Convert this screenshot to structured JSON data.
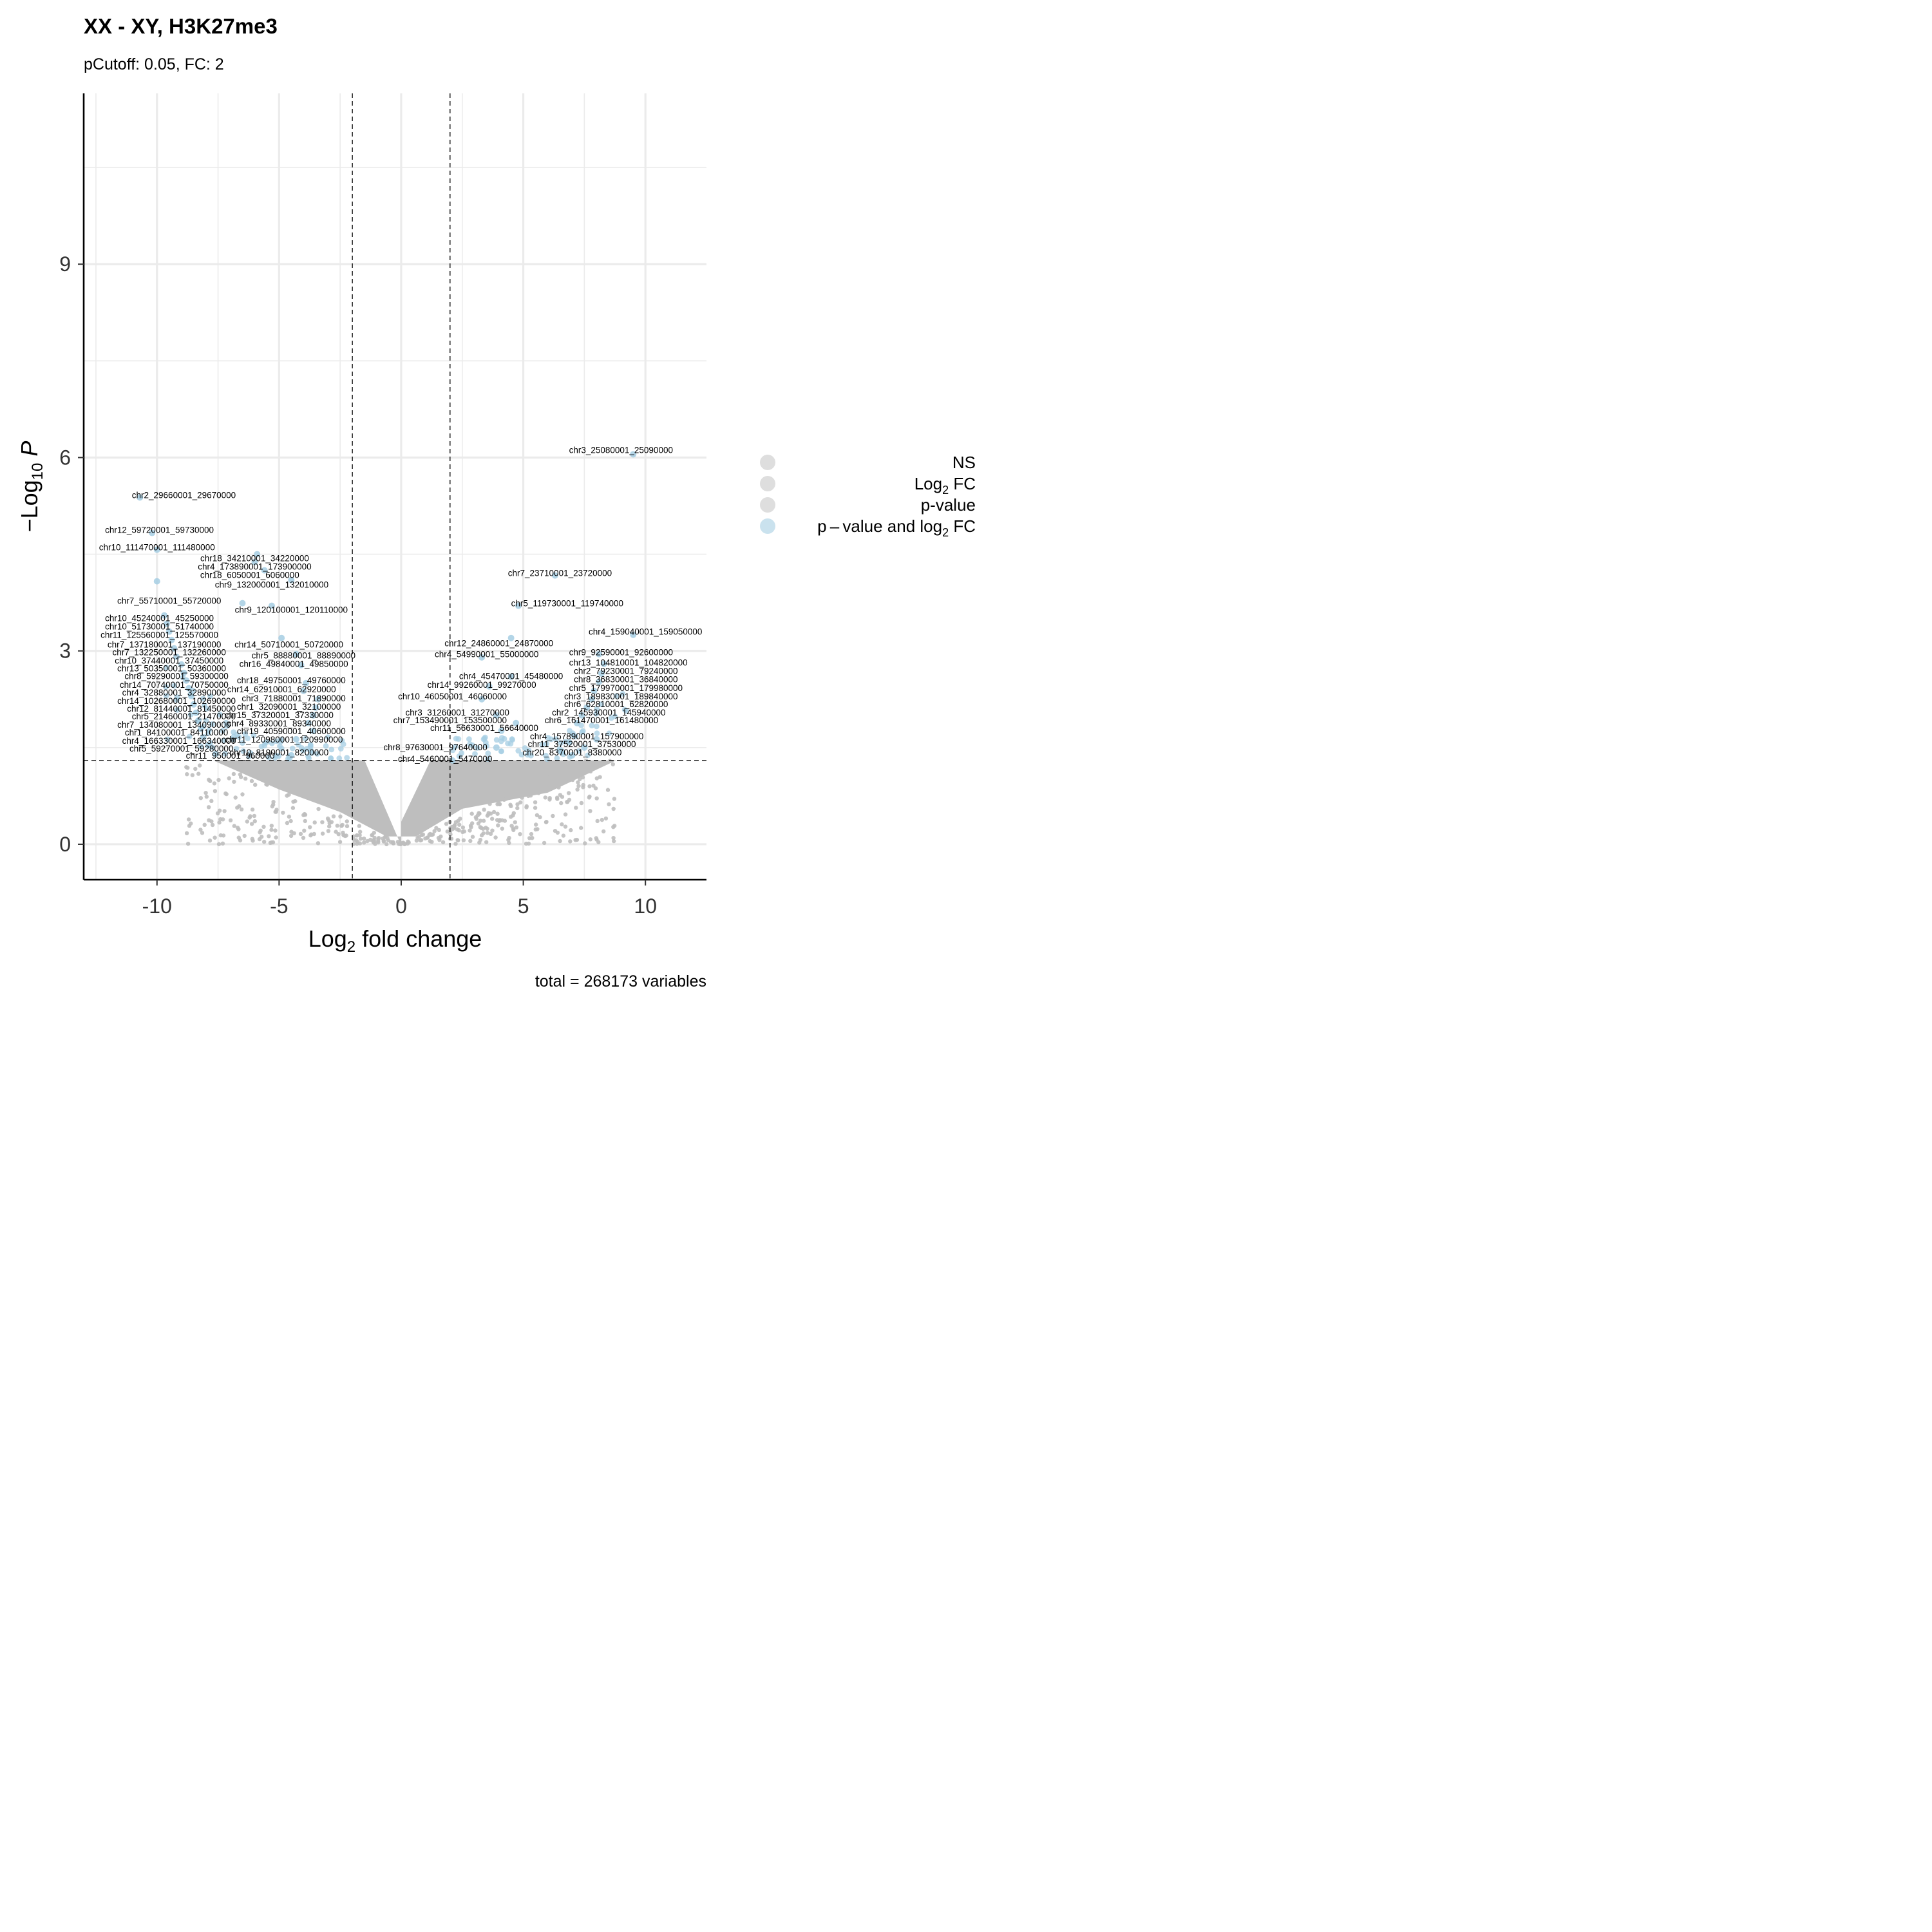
{
  "title": "XX - XY, H3K27me3",
  "subtitle": "pCutoff: 0.05, FC: 2",
  "caption": "total = 268173 variables",
  "colors": {
    "ns": "#bebebe",
    "sig": "#a6cee3",
    "grid": "#ebebeb"
  },
  "chart_data": {
    "type": "scatter",
    "title": "XX - XY, H3K27me3",
    "subtitle": "pCutoff: 0.05, FC: 2",
    "xlabel": "Log2 fold change",
    "ylabel": "-Log10 P",
    "xlim": [
      -13,
      12.5
    ],
    "ylim": [
      -0.55,
      11.65
    ],
    "xticks": [
      -10,
      -5,
      0,
      5,
      10
    ],
    "xtick_labels": [
      "-10",
      "-5",
      "0",
      "5",
      "10"
    ],
    "yticks": [
      0,
      3,
      6,
      9
    ],
    "ytick_labels": [
      "0",
      "3",
      "6",
      "9"
    ],
    "grid": true,
    "cutoff_lines": {
      "log2fc": [
        -2,
        2
      ],
      "neglog10p": 1.301
    },
    "legend": {
      "position": "right",
      "entries": [
        {
          "name": "NS",
          "color": "#bebebe"
        },
        {
          "name": "Log2 FC",
          "color": "#bebebe"
        },
        {
          "name": "p-value",
          "color": "#bebebe"
        },
        {
          "name": "p–value and log2 FC",
          "color": "#a6cee3"
        }
      ]
    },
    "labeled_points": [
      {
        "label": "chr3_25080001_25090000",
        "x": 9.5,
        "y": 6.05
      },
      {
        "label": "chr2_29660001_29670000",
        "x": -10.7,
        "y": 5.38
      },
      {
        "label": "chr12_59720001_59730000",
        "x": -10.2,
        "y": 4.83
      },
      {
        "label": "chr10_111470001_111480000",
        "x": -10.0,
        "y": 4.57
      },
      {
        "label": "chr18_34210001_34220000",
        "x": -5.9,
        "y": 4.5
      },
      {
        "label": "chr4_173890001_173900000",
        "x": -6.0,
        "y": 4.38
      },
      {
        "label": "chr18_6050001_6060000",
        "x": -5.6,
        "y": 4.25
      },
      {
        "label": "chr7_23710001_23720000",
        "x": 6.3,
        "y": 4.17
      },
      {
        "label": "chr9_132000001_132010000",
        "x": -4.5,
        "y": 4.1
      },
      {
        "label": "chr10_111470001_111480000b",
        "x": -10.0,
        "y": 4.08
      },
      {
        "label": "chr7_55710001_55720000",
        "x": -6.5,
        "y": 3.74
      },
      {
        "label": "chr5_119730001_119740000",
        "x": 4.8,
        "y": 3.7
      },
      {
        "label": "chr9_120100001_120110000",
        "x": -5.3,
        "y": 3.7
      },
      {
        "label": "chr10_45240001_45250000",
        "x": -9.7,
        "y": 3.55
      },
      {
        "label": "chr10_51730001_51740000",
        "x": -9.6,
        "y": 3.42
      },
      {
        "label": "chr11_125560001_125570000",
        "x": -9.5,
        "y": 3.3
      },
      {
        "label": "chr4_159040001_159050000",
        "x": 9.5,
        "y": 3.25
      },
      {
        "label": "chr7_137180001_137190000",
        "x": -9.4,
        "y": 3.17
      },
      {
        "label": "chr14_50710001_50720000",
        "x": -4.9,
        "y": 3.2
      },
      {
        "label": "chr12_24860001_24870000",
        "x": 4.5,
        "y": 3.2
      },
      {
        "label": "chr7_132250001_132260000",
        "x": -9.3,
        "y": 3.04
      },
      {
        "label": "chr9_92590001_92600000",
        "x": 8.1,
        "y": 2.95
      },
      {
        "label": "chr5_88880001_88890000",
        "x": -4.3,
        "y": 2.95
      },
      {
        "label": "chr4_54990001_55000000",
        "x": 3.3,
        "y": 2.9
      },
      {
        "label": "chr10_37440001_37450000",
        "x": -9.2,
        "y": 2.91
      },
      {
        "label": "chr13_104810001_104820000",
        "x": 8.3,
        "y": 2.8
      },
      {
        "label": "chr16_49840001_49850000",
        "x": -4.1,
        "y": 2.78
      },
      {
        "label": "chr13_50350001_50360000",
        "x": -9.0,
        "y": 2.79
      },
      {
        "label": "chr2_79230001_79240000",
        "x": 8.2,
        "y": 2.65
      },
      {
        "label": "chr8_59290001_59300000",
        "x": -8.9,
        "y": 2.66
      },
      {
        "label": "chr4_45470001_45480000",
        "x": 4.5,
        "y": 2.6
      },
      {
        "label": "chr8_36830001_36840000",
        "x": 8.1,
        "y": 2.52
      },
      {
        "label": "chr18_49750001_49760000",
        "x": -3.9,
        "y": 2.5
      },
      {
        "label": "chr14_70740001_70750000",
        "x": -8.8,
        "y": 2.54
      },
      {
        "label": "chr14_99260001_99270000",
        "x": 3.6,
        "y": 2.45
      },
      {
        "label": "chr5_179970001_179980000",
        "x": 7.9,
        "y": 2.38
      },
      {
        "label": "chr14_62910001_62920000",
        "x": -4.0,
        "y": 2.38
      },
      {
        "label": "chr4_32880001_32890000",
        "x": -8.7,
        "y": 2.42
      },
      {
        "label": "chr10_46050001_46060000",
        "x": 3.3,
        "y": 2.25
      },
      {
        "label": "chr3_189830001_189840000",
        "x": 7.8,
        "y": 2.25
      },
      {
        "label": "chr3_71880001_71890000",
        "x": -3.4,
        "y": 2.25
      },
      {
        "label": "chr14_102680001_102690000",
        "x": -8.6,
        "y": 2.3
      },
      {
        "label": "chr6_62810001_62820000",
        "x": 7.6,
        "y": 2.12
      },
      {
        "label": "chr1_32090001_32100000",
        "x": -3.5,
        "y": 2.12
      },
      {
        "label": "chr12_81440001_81450000",
        "x": -8.5,
        "y": 2.17
      },
      {
        "label": "chr3_31260001_31270000",
        "x": 3.9,
        "y": 2.0
      },
      {
        "label": "chr2_145930001_145940000",
        "x": 7.4,
        "y": 2.0
      },
      {
        "label": "chr15_37320001_37330000",
        "x": -3.6,
        "y": 2.0
      },
      {
        "label": "chr5_21460001_21470000",
        "x": -8.4,
        "y": 2.04
      },
      {
        "label": "chr7_153490001_153500000",
        "x": 4.7,
        "y": 1.88
      },
      {
        "label": "chr6_161470001_161480000",
        "x": 7.2,
        "y": 1.88
      },
      {
        "label": "chr4_89330001_89340000",
        "x": -3.8,
        "y": 1.88
      },
      {
        "label": "chr7_134080001_134090000",
        "x": -8.3,
        "y": 1.92
      },
      {
        "label": "chr11_56630001_56640000",
        "x": 4.1,
        "y": 1.76
      },
      {
        "label": "chr19_40590001_40600000",
        "x": -3.6,
        "y": 1.76
      },
      {
        "label": "chr1_84100001_84110000",
        "x": -8.2,
        "y": 1.79
      },
      {
        "label": "chr4_157890001_157900000",
        "x": 8.0,
        "y": 1.63
      },
      {
        "label": "chr11_120980001_120990000",
        "x": -4.3,
        "y": 1.63
      },
      {
        "label": "chr4_166330001_166340000",
        "x": -8.1,
        "y": 1.66
      },
      {
        "label": "chr11_37520001_37530000",
        "x": 7.5,
        "y": 1.5
      },
      {
        "label": "chr8_97630001_97640000",
        "x": 3.9,
        "y": 1.5
      },
      {
        "label": "chr5_59270001_59280000",
        "x": -7.9,
        "y": 1.53
      },
      {
        "label": "chr20_8370001_8380000",
        "x": 7.0,
        "y": 1.38
      },
      {
        "label": "chr10_8190001_8200000",
        "x": -4.5,
        "y": 1.38
      },
      {
        "label": "chr4_5460001_5470000",
        "x": 2.1,
        "y": 1.3
      },
      {
        "label": "chr11_950001_960000",
        "x": -7.6,
        "y": 1.4
      }
    ],
    "label_text": [
      {
        "label": "chr3_25080001_25090000",
        "x": 9.0,
        "y": 6.07
      },
      {
        "label": "chr2_29660001_29670000",
        "x": -8.9,
        "y": 5.37
      },
      {
        "label": "chr12_59720001_59730000",
        "x": -9.9,
        "y": 4.83
      },
      {
        "label": "chr10_111470001_111480000",
        "x": -10.0,
        "y": 4.56
      },
      {
        "label": "chr18_34210001_34220000",
        "x": -6.0,
        "y": 4.39
      },
      {
        "label": "chr4_173890001_173900000",
        "x": -6.0,
        "y": 4.26
      },
      {
        "label": "chr18_6050001_6060000",
        "x": -6.2,
        "y": 4.13
      },
      {
        "label": "chr7_23710001_23720000",
        "x": 6.5,
        "y": 4.16
      },
      {
        "label": "chr9_132000001_132010000",
        "x": -5.3,
        "y": 3.98
      },
      {
        "label": "chr7_55710001_55720000",
        "x": -9.5,
        "y": 3.73
      },
      {
        "label": "chr5_119730001_119740000",
        "x": 6.8,
        "y": 3.69
      },
      {
        "label": "chr9_120100001_120110000",
        "x": -4.5,
        "y": 3.59
      },
      {
        "label": "chr10_45240001_45250000",
        "x": -9.9,
        "y": 3.46
      },
      {
        "label": "chr10_51730001_51740000",
        "x": -9.9,
        "y": 3.33
      },
      {
        "label": "chr11_125560001_125570000",
        "x": -9.9,
        "y": 3.2
      },
      {
        "label": "chr4_159040001_159050000",
        "x": 10.0,
        "y": 3.25
      },
      {
        "label": "chr7_137180001_137190000",
        "x": -9.7,
        "y": 3.05
      },
      {
        "label": "chr14_50710001_50720000",
        "x": -4.6,
        "y": 3.05
      },
      {
        "label": "chr12_24860001_24870000",
        "x": 4.0,
        "y": 3.07
      },
      {
        "label": "chr7_132250001_132260000",
        "x": -9.5,
        "y": 2.93
      },
      {
        "label": "chr9_92590001_92600000",
        "x": 9.0,
        "y": 2.93
      },
      {
        "label": "chr5_88880001_88890000",
        "x": -4.0,
        "y": 2.88
      },
      {
        "label": "chr4_54990001_55000000",
        "x": 3.5,
        "y": 2.9
      },
      {
        "label": "chr10_37440001_37450000",
        "x": -9.5,
        "y": 2.8
      },
      {
        "label": "chr13_104810001_104820000",
        "x": 9.3,
        "y": 2.77
      },
      {
        "label": "chr16_49840001_49850000",
        "x": -4.4,
        "y": 2.75
      },
      {
        "label": "chr13_50350001_50360000",
        "x": -9.4,
        "y": 2.68
      },
      {
        "label": "chr2_79230001_79240000",
        "x": 9.2,
        "y": 2.64
      },
      {
        "label": "chr8_59290001_59300000",
        "x": -9.2,
        "y": 2.56
      },
      {
        "label": "chr4_45470001_45480000",
        "x": 4.5,
        "y": 2.56
      },
      {
        "label": "chr8_36830001_36840000",
        "x": 9.2,
        "y": 2.51
      },
      {
        "label": "chr18_49750001_49760000",
        "x": -4.5,
        "y": 2.5
      },
      {
        "label": "chr14_70740001_70750000",
        "x": -9.3,
        "y": 2.43
      },
      {
        "label": "chr14_99260001_99270000",
        "x": 3.3,
        "y": 2.43
      },
      {
        "label": "chr5_179970001_179980000",
        "x": 9.2,
        "y": 2.38
      },
      {
        "label": "chr14_62910001_62920000",
        "x": -4.9,
        "y": 2.36
      },
      {
        "label": "chr4_32880001_32890000",
        "x": -9.3,
        "y": 2.31
      },
      {
        "label": "chr10_46050001_46060000",
        "x": 2.1,
        "y": 2.25
      },
      {
        "label": "chr3_189830001_189840000",
        "x": 9.0,
        "y": 2.25
      },
      {
        "label": "chr3_71880001_71890000",
        "x": -4.4,
        "y": 2.22
      },
      {
        "label": "chr14_102680001_102690000",
        "x": -9.2,
        "y": 2.18
      },
      {
        "label": "chr6_62810001_62820000",
        "x": 8.8,
        "y": 2.13
      },
      {
        "label": "chr1_32090001_32100000",
        "x": -4.6,
        "y": 2.09
      },
      {
        "label": "chr12_81440001_81450000",
        "x": -9.0,
        "y": 2.06
      },
      {
        "label": "chr3_31260001_31270000",
        "x": 2.3,
        "y": 2.0
      },
      {
        "label": "chr2_145930001_145940000",
        "x": 8.5,
        "y": 2.0
      },
      {
        "label": "chr15_37320001_37330000",
        "x": -5.0,
        "y": 1.96
      },
      {
        "label": "chr5_21460001_21470000",
        "x": -8.9,
        "y": 1.94
      },
      {
        "label": "chr7_153490001_153500000",
        "x": 2.0,
        "y": 1.88
      },
      {
        "label": "chr6_161470001_161480000",
        "x": 8.2,
        "y": 1.88
      },
      {
        "label": "chr4_89330001_89340000",
        "x": -5.0,
        "y": 1.83
      },
      {
        "label": "chr7_134080001_134090000",
        "x": -9.3,
        "y": 1.81
      },
      {
        "label": "chr11_56630001_56640000",
        "x": 3.4,
        "y": 1.76
      },
      {
        "label": "chr19_40590001_40600000",
        "x": -4.5,
        "y": 1.71
      },
      {
        "label": "chr1_84100001_84110000",
        "x": -9.2,
        "y": 1.69
      },
      {
        "label": "chr4_157890001_157900000",
        "x": 7.6,
        "y": 1.63
      },
      {
        "label": "chr11_120980001_120990000",
        "x": -4.8,
        "y": 1.58
      },
      {
        "label": "chr4_166330001_166340000",
        "x": -9.1,
        "y": 1.56
      },
      {
        "label": "chr11_37520001_37530000",
        "x": 7.4,
        "y": 1.51
      },
      {
        "label": "chr8_97630001_97640000",
        "x": 1.4,
        "y": 1.46
      },
      {
        "label": "chr5_59270001_59280000",
        "x": -9.0,
        "y": 1.44
      },
      {
        "label": "chr20_8370001_8380000",
        "x": 7.0,
        "y": 1.38
      },
      {
        "label": "chr10_8190001_8200000",
        "x": -5.0,
        "y": 1.38
      },
      {
        "label": "chr4_5460001_5470000",
        "x": 1.8,
        "y": 1.28
      },
      {
        "label": "chr11_950001_960000",
        "x": -7.0,
        "y": 1.33
      }
    ]
  }
}
